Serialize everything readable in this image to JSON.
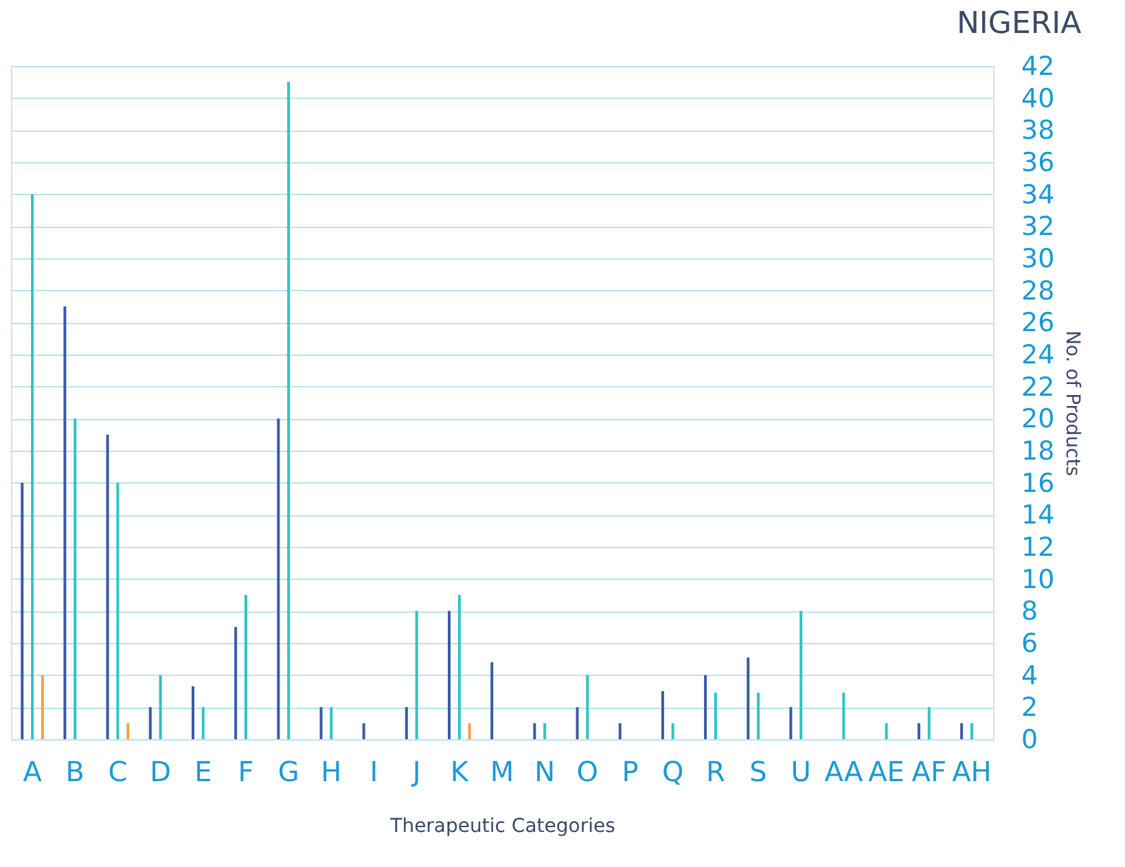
{
  "chart_data": {
    "type": "bar",
    "title": "NIGERIA",
    "xlabel": "Therapeutic Categories",
    "ylabel": "No. of Products",
    "categories": [
      "A",
      "B",
      "C",
      "D",
      "E",
      "F",
      "G",
      "H",
      "I",
      "J",
      "K",
      "M",
      "N",
      "O",
      "P",
      "Q",
      "R",
      "S",
      "U",
      "AA",
      "AE",
      "AF",
      "AH"
    ],
    "series": [
      {
        "color": "#3a5aa8",
        "values": [
          16,
          27,
          19,
          2,
          3.3,
          7,
          20,
          2,
          1,
          2,
          8,
          4.8,
          1,
          2,
          1,
          3,
          4,
          5.1,
          2,
          null,
          null,
          1,
          1
        ]
      },
      {
        "color": "#2ec4c4",
        "values": [
          34,
          20,
          16,
          4,
          2,
          9,
          41,
          2,
          null,
          8,
          9,
          null,
          1,
          4,
          null,
          1,
          2.9,
          2.9,
          8,
          2.9,
          1,
          2,
          1
        ]
      },
      {
        "color": "#f5a040",
        "values": [
          4,
          null,
          1,
          null,
          null,
          null,
          null,
          null,
          null,
          null,
          1,
          null,
          null,
          null,
          null,
          null,
          null,
          null,
          null,
          null,
          null,
          null,
          null
        ]
      }
    ],
    "ylim": [
      0,
      42
    ],
    "yticks": [
      0,
      2,
      4,
      6,
      8,
      10,
      12,
      14,
      16,
      18,
      20,
      22,
      24,
      26,
      28,
      30,
      32,
      34,
      36,
      38,
      40,
      42
    ],
    "grid": "y",
    "legend": false
  }
}
